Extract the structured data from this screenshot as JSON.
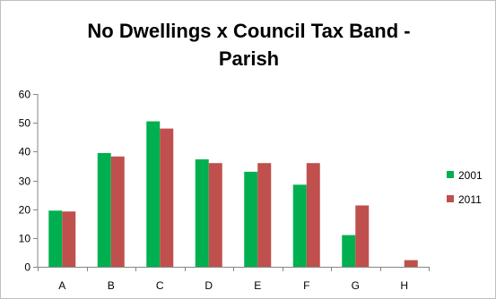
{
  "chart_data": {
    "type": "bar",
    "title_line1": "No Dwellings x Council Tax Band -",
    "title_line2": "Parish",
    "categories": [
      "A",
      "B",
      "C",
      "D",
      "E",
      "F",
      "G",
      "H"
    ],
    "series": [
      {
        "name": "2001",
        "color": "#00b050",
        "values": [
          19.5,
          39.5,
          50.5,
          37.3,
          33.0,
          28.5,
          11.0,
          0
        ]
      },
      {
        "name": "2011",
        "color": "#c0504d",
        "values": [
          19.2,
          38.3,
          48.0,
          36.0,
          36.0,
          36.0,
          21.3,
          2.3
        ]
      }
    ],
    "ylim": [
      0,
      60
    ],
    "yticks": [
      0,
      10,
      20,
      30,
      40,
      50,
      60
    ],
    "xlabel": "",
    "ylabel": "",
    "grid": false,
    "legend_position": "right"
  }
}
